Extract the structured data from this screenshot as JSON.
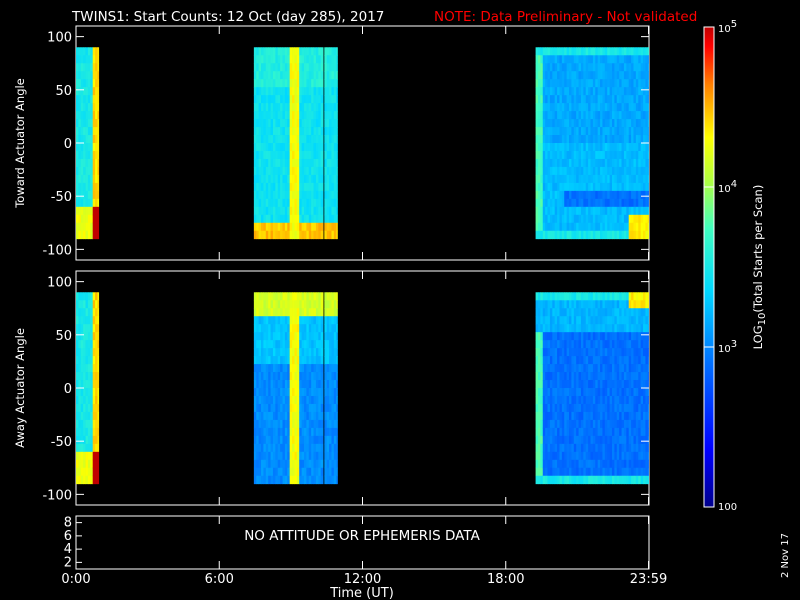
{
  "chart_data": {
    "type": "heatmap",
    "title": "TWINS1: Start Counts: 12 Oct (day 285), 2017",
    "note": "NOTE: Data Preliminary - Not validated",
    "note_color": "#ff0000",
    "xlabel": "Time (UT)",
    "x_ticks": [
      "0:00",
      "6:00",
      "12:00",
      "18:00",
      "23:59"
    ],
    "x_tick_hours": [
      0,
      6,
      12,
      18,
      23.98
    ],
    "x_range_hours": [
      0,
      24
    ],
    "panels": [
      {
        "name": "toward",
        "ylabel": "Toward Actuator Angle",
        "y_ticks": [
          "100",
          "50",
          "0",
          "-50",
          "-100"
        ],
        "y_tick_values": [
          100,
          50,
          0,
          -50,
          -100
        ],
        "ylim": [
          -110,
          110
        ],
        "data_angle_range": [
          -90,
          90
        ]
      },
      {
        "name": "away",
        "ylabel": "Away Actuator Angle",
        "y_ticks": [
          "100",
          "50",
          "0",
          "-50",
          "-100"
        ],
        "y_tick_values": [
          100,
          50,
          0,
          -50,
          -100
        ],
        "ylim": [
          -110,
          110
        ],
        "data_angle_range": [
          -90,
          90
        ]
      }
    ],
    "data_intervals_hours": [
      [
        0.0,
        0.95
      ],
      [
        7.45,
        10.35
      ],
      [
        10.4,
        10.95
      ],
      [
        19.25,
        23.98
      ]
    ],
    "third_panel": {
      "y_ticks": [
        "8",
        "6",
        "4",
        "2"
      ],
      "y_tick_values": [
        8,
        6,
        4,
        2
      ],
      "ylim": [
        1,
        9
      ],
      "message": "NO ATTITUDE OR EPHEMERIS DATA"
    },
    "colorbar": {
      "label": "LOG10(Total Starts per Scan)",
      "label_main": "LOG",
      "label_sub": "10",
      "label_rest": "(Total Starts per Scan)",
      "scale": "log",
      "range": [
        100,
        100000
      ],
      "ticks": [
        {
          "value": 100000,
          "base": "10",
          "exp": "5"
        },
        {
          "value": 10000,
          "base": "10",
          "exp": "4"
        },
        {
          "value": 1000,
          "base": "10",
          "exp": "3"
        },
        {
          "value": 100,
          "base": "100",
          "exp": ""
        }
      ],
      "colors": [
        "#0000a0",
        "#0000ff",
        "#0080ff",
        "#00e0ff",
        "#40ffc0",
        "#c0ff40",
        "#ffff00",
        "#ff8000",
        "#ff0000",
        "#c00000"
      ]
    },
    "stamp": "2 Nov 17"
  }
}
